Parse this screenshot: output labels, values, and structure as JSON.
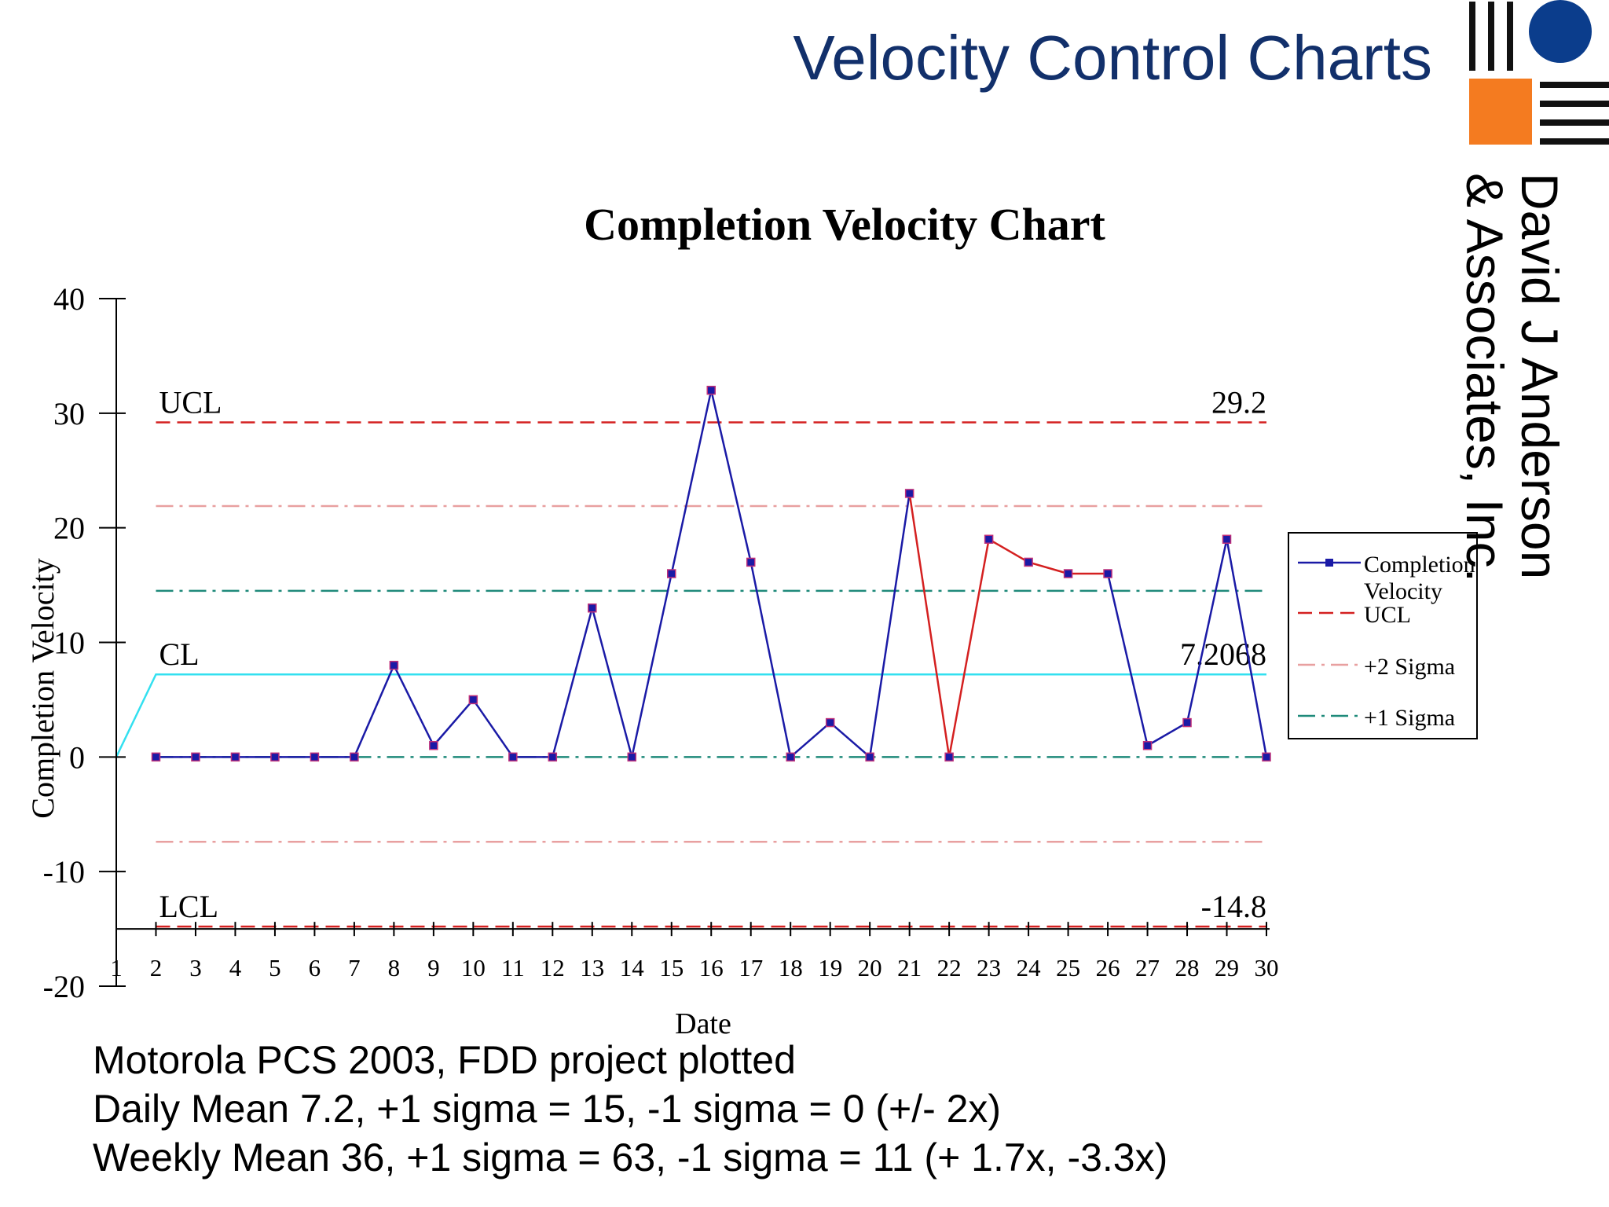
{
  "slide": {
    "title": "Velocity Control Charts",
    "notes": [
      "Motorola PCS 2003, FDD project plotted",
      "Daily Mean 7.2, +1 sigma = 15, -1 sigma = 0 (+/- 2x)",
      "Weekly Mean 36, +1 sigma = 63, -1 sigma = 11 (+ 1.7x, -3.3x)"
    ]
  },
  "logo": {
    "line1": "David J Anderson",
    "line2": "& Associates, Inc.",
    "colors": {
      "circle": "#0b3d8c",
      "square": "#f47b20",
      "bars": "#111111"
    }
  },
  "chart_data": {
    "type": "line",
    "title": "Completion Velocity Chart",
    "xlabel": "Date",
    "ylabel": "Completion Velocity",
    "ylim": [
      -20,
      40
    ],
    "yticks": [
      40,
      30,
      20,
      10,
      0,
      -10,
      -20
    ],
    "x": [
      1,
      2,
      3,
      4,
      5,
      6,
      7,
      8,
      9,
      10,
      11,
      12,
      13,
      14,
      15,
      16,
      17,
      18,
      19,
      20,
      21,
      22,
      23,
      24,
      25,
      26,
      27,
      28,
      29,
      30
    ],
    "series": [
      {
        "name": "Completion Velocity",
        "color": "#1a1aa6",
        "values": [
          null,
          0,
          0,
          0,
          0,
          0,
          0,
          8,
          1,
          5,
          0,
          0,
          13,
          0,
          16,
          32,
          17,
          0,
          3,
          0,
          23,
          0,
          19,
          17,
          16,
          16,
          1,
          3,
          19,
          0
        ],
        "highlight_color": "#d42020",
        "highlight_range": [
          21,
          26
        ]
      }
    ],
    "control_lines": [
      {
        "name": "UCL",
        "value": 29.2,
        "color": "#d42020",
        "style": "dashed",
        "left_label": "UCL",
        "right_label": "29.2"
      },
      {
        "name": "+2 Sigma",
        "value": 21.9,
        "color": "#e8a0a0",
        "style": "dashdot"
      },
      {
        "name": "+1 Sigma",
        "value": 14.5,
        "color": "#1f8a7a",
        "style": "dashdot"
      },
      {
        "name": "CL",
        "value": 7.2068,
        "color": "#33e0f0",
        "style": "solid",
        "left_label": "CL",
        "right_label": "7.2068"
      },
      {
        "name": "-1 Sigma",
        "value": 0,
        "color": "#1f8a7a",
        "style": "dashdot"
      },
      {
        "name": "-2 Sigma",
        "value": -7.4,
        "color": "#e8a0a0",
        "style": "dashdot"
      },
      {
        "name": "LCL",
        "value": -14.8,
        "color": "#d42020",
        "style": "dashed",
        "left_label": "LCL",
        "right_label": "-14.8"
      }
    ],
    "legend": {
      "position": "right",
      "entries": [
        {
          "label": "Completion Velocity",
          "lines": [
            "Completion",
            "Velocity"
          ],
          "color": "#1a1aa6",
          "style": "solid-marker"
        },
        {
          "label": "UCL",
          "lines": [
            "UCL"
          ],
          "color": "#d42020",
          "style": "dashed"
        },
        {
          "label": "+2 Sigma",
          "lines": [
            "+2 Sigma"
          ],
          "color": "#e8a0a0",
          "style": "dashdot"
        },
        {
          "label": "+1 Sigma",
          "lines": [
            "+1 Sigma"
          ],
          "color": "#1f8a7a",
          "style": "dashdot"
        }
      ]
    }
  }
}
